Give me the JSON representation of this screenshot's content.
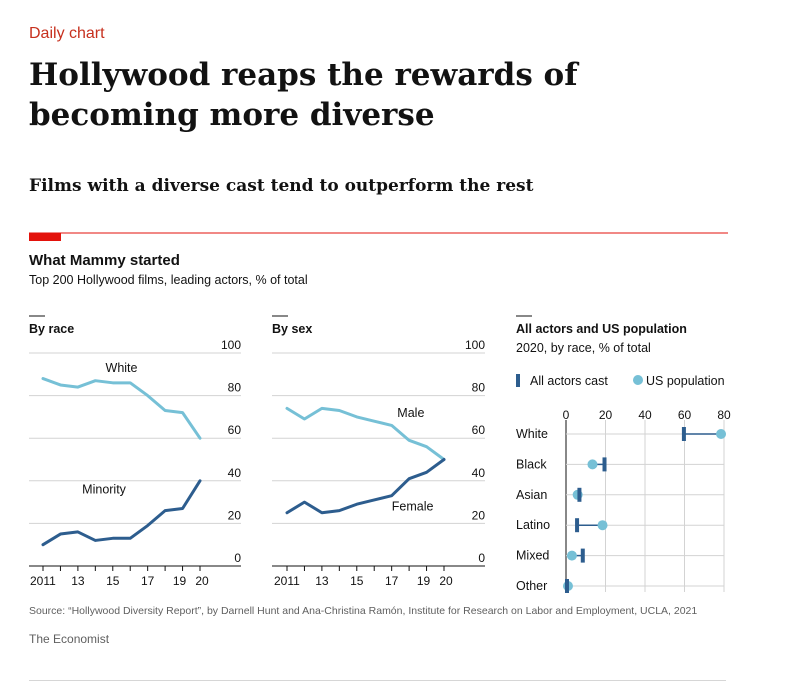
{
  "kicker": "Daily chart",
  "headline": "Hollywood reaps the rewards of becoming more diverse",
  "subhead": "Films with a diverse cast tend to outperform the rest",
  "colors": {
    "accent_red": "#e3120b",
    "kicker_red": "#c7301e",
    "light_blue": "#76c0d6",
    "dark_blue": "#2d5d8e",
    "grid": "#d3d3d3",
    "text": "#121212",
    "muted": "#5f5f5f"
  },
  "chart_data": [
    {
      "type": "line",
      "panel_title": "What Mammy started",
      "panel_subtitle": "Top 200 Hollywood films, leading actors, % of total",
      "title": "By race",
      "x": [
        2011,
        2012,
        2013,
        2014,
        2015,
        2016,
        2017,
        2018,
        2019,
        2020
      ],
      "x_tick_labels": [
        "2011",
        "13",
        "15",
        "17",
        "19",
        "20"
      ],
      "ylim": [
        0,
        100
      ],
      "y_ticks": [
        0,
        20,
        40,
        60,
        80,
        100
      ],
      "series": [
        {
          "name": "White",
          "color": "#76c0d6",
          "values": [
            88,
            85,
            84,
            87,
            86,
            86,
            80,
            73,
            72,
            60
          ]
        },
        {
          "name": "Minority",
          "color": "#2d5d8e",
          "values": [
            10,
            15,
            16,
            12,
            13,
            13,
            19,
            26,
            27,
            40
          ]
        }
      ]
    },
    {
      "type": "line",
      "title": "By sex",
      "x": [
        2011,
        2012,
        2013,
        2014,
        2015,
        2016,
        2017,
        2018,
        2019,
        2020
      ],
      "x_tick_labels": [
        "2011",
        "13",
        "15",
        "17",
        "19",
        "20"
      ],
      "ylim": [
        0,
        100
      ],
      "y_ticks": [
        0,
        20,
        40,
        60,
        80,
        100
      ],
      "series": [
        {
          "name": "Male",
          "color": "#76c0d6",
          "values": [
            74,
            69,
            74,
            73,
            70,
            68,
            66,
            59,
            56,
            50
          ]
        },
        {
          "name": "Female",
          "color": "#2d5d8e",
          "values": [
            25,
            30,
            25,
            26,
            29,
            31,
            33,
            41,
            44,
            50
          ]
        }
      ]
    },
    {
      "type": "dot",
      "title": "All actors and US population",
      "subtitle": "2020, by race, % of total",
      "legend": [
        "All actors cast",
        "US population"
      ],
      "categories": [
        "White",
        "Black",
        "Asian",
        "Latino",
        "Mixed",
        "Other"
      ],
      "xlim": [
        0,
        80
      ],
      "x_ticks": [
        0,
        20,
        40,
        60,
        80
      ],
      "series": [
        {
          "name": "All actors cast",
          "color": "#2d5d8e",
          "values": [
            59.7,
            19.5,
            6.8,
            5.6,
            8.5,
            0.5
          ]
        },
        {
          "name": "US population",
          "color": "#76c0d6",
          "values": [
            78.5,
            13.4,
            5.9,
            18.5,
            3.0,
            1.0
          ]
        }
      ]
    }
  ],
  "source": "Source: “Hollywood Diversity Report”, by Darnell Hunt and Ana-Christina Ramón, Institute for Research on Labor and Employment, UCLA, 2021",
  "brand": "The Economist"
}
